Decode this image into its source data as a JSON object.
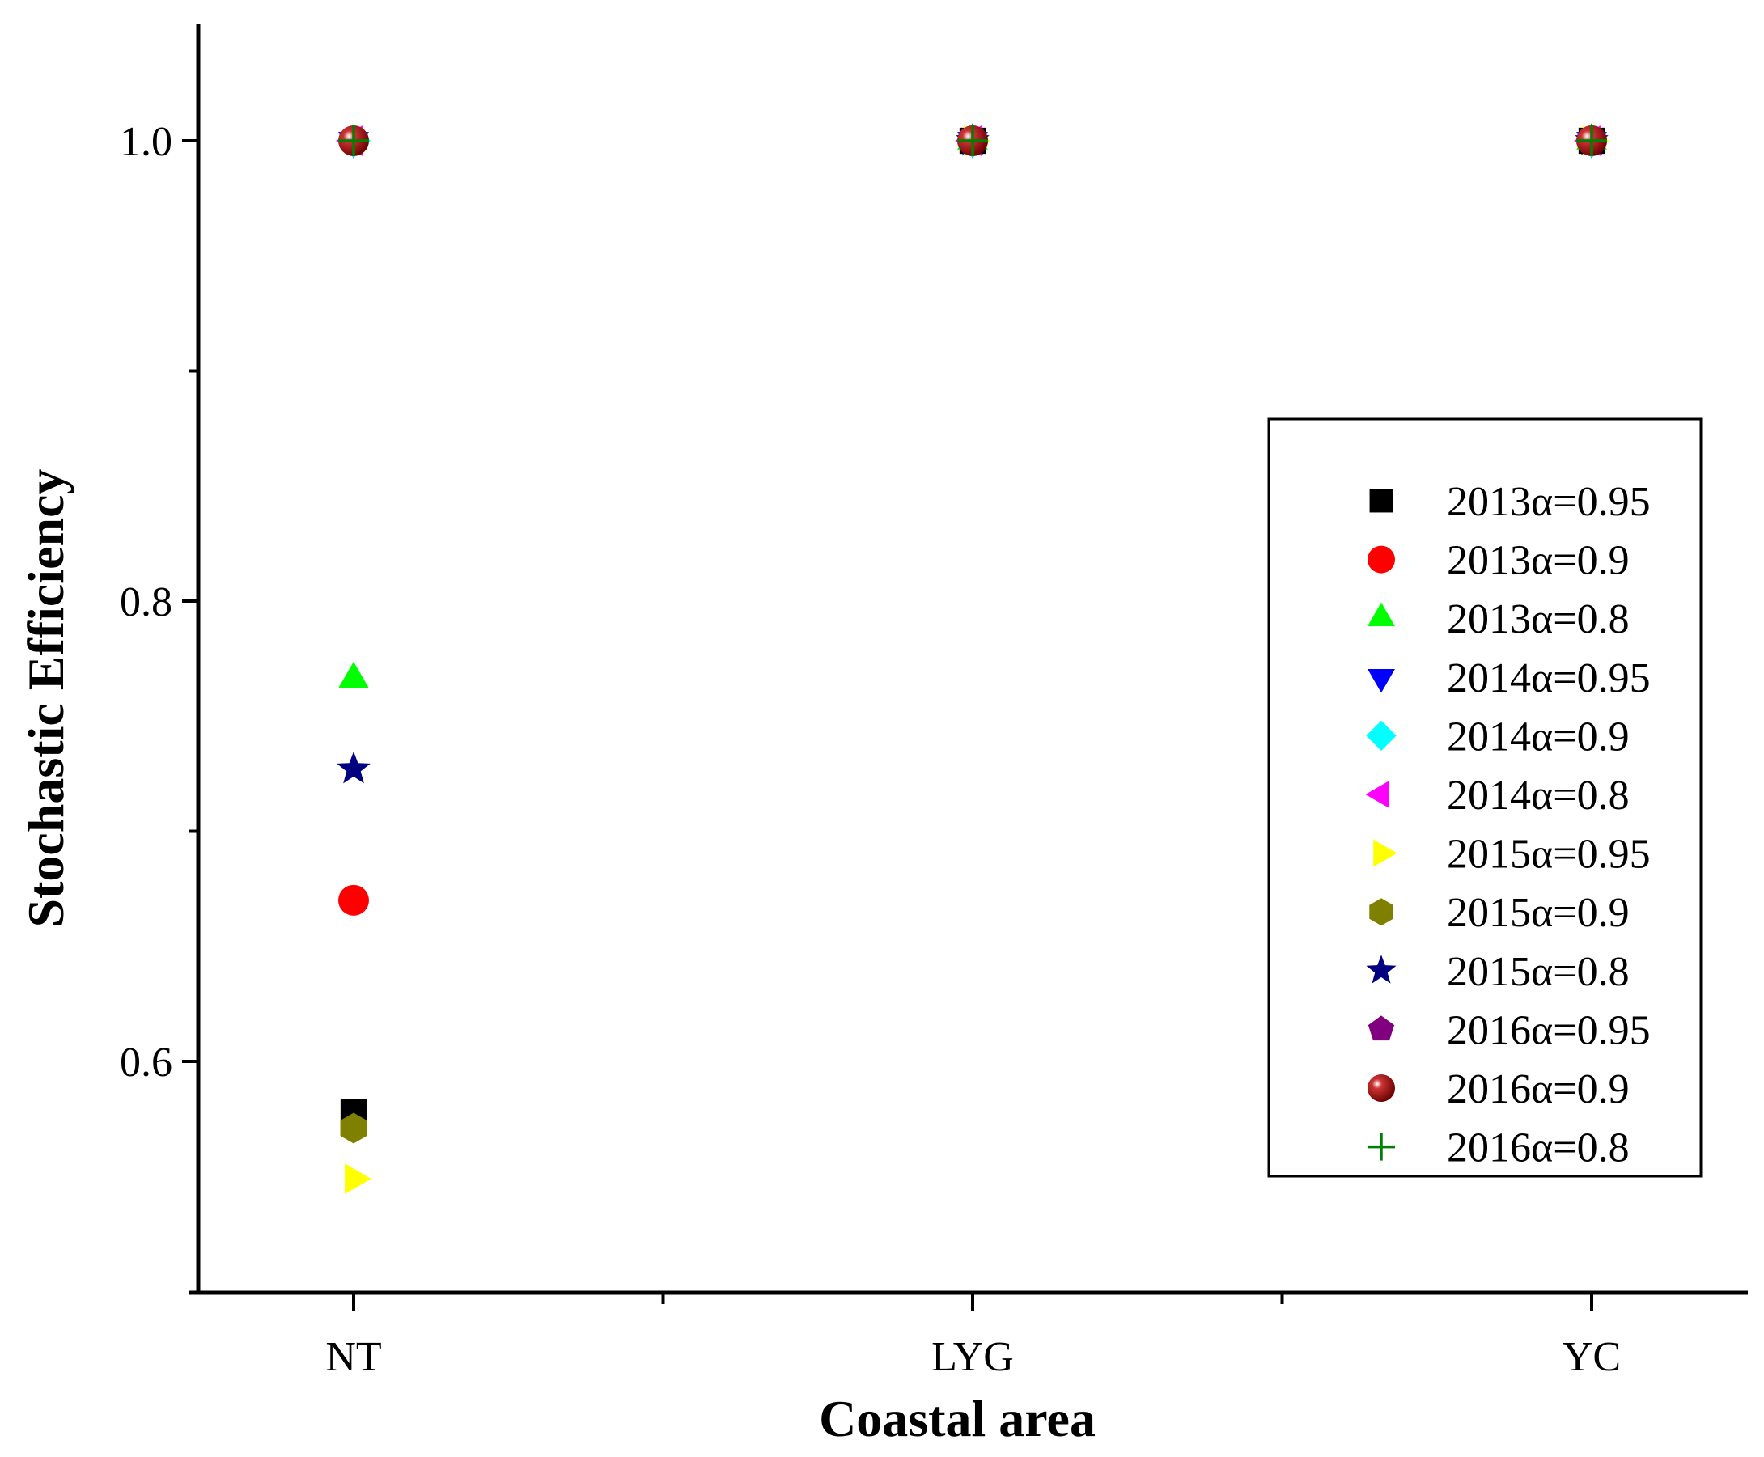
{
  "chart_data": {
    "type": "scatter",
    "title": "",
    "xlabel": "Coastal area",
    "ylabel": "Stochastic Efficiency",
    "categories": [
      "NT",
      "LYG",
      "YC"
    ],
    "ylim": [
      0.5,
      1.05
    ],
    "yticks": [
      0.6,
      0.8,
      1.0
    ],
    "ytick_labels": [
      "0.6",
      "0.8",
      "1.0"
    ],
    "legend_position": "right",
    "grid": false,
    "series": [
      {
        "name": "2013α=0.95",
        "marker": "square",
        "color": "#000000",
        "values": [
          0.578,
          1.0,
          1.0
        ]
      },
      {
        "name": "2013α=0.9",
        "marker": "circle",
        "color": "#ff0000",
        "values": [
          0.67,
          1.0,
          1.0
        ]
      },
      {
        "name": "2013α=0.8",
        "marker": "triangle-up",
        "color": "#00ff00",
        "values": [
          0.766,
          1.0,
          1.0
        ]
      },
      {
        "name": "2014α=0.95",
        "marker": "triangle-down",
        "color": "#0000ff",
        "values": [
          1.0,
          1.0,
          1.0
        ]
      },
      {
        "name": "2014α=0.9",
        "marker": "diamond",
        "color": "#00ffff",
        "values": [
          1.0,
          1.0,
          1.0
        ]
      },
      {
        "name": "2014α=0.8",
        "marker": "triangle-left",
        "color": "#ff00ff",
        "values": [
          1.0,
          1.0,
          1.0
        ]
      },
      {
        "name": "2015α=0.95",
        "marker": "triangle-right",
        "color": "#ffff00",
        "values": [
          0.549,
          1.0,
          1.0
        ]
      },
      {
        "name": "2015α=0.9",
        "marker": "hexagon",
        "color": "#808000",
        "values": [
          0.571,
          1.0,
          1.0
        ]
      },
      {
        "name": "2015α=0.8",
        "marker": "star",
        "color": "#000080",
        "values": [
          0.727,
          1.0,
          1.0
        ]
      },
      {
        "name": "2016α=0.95",
        "marker": "pentagon",
        "color": "#800080",
        "values": [
          1.0,
          1.0,
          1.0
        ]
      },
      {
        "name": "2016α=0.9",
        "marker": "sphere",
        "color": "#990000",
        "values": [
          1.0,
          1.0,
          1.0
        ]
      },
      {
        "name": "2016α=0.8",
        "marker": "plus",
        "color": "#008000",
        "values": [
          1.0,
          1.0,
          1.0
        ]
      }
    ]
  }
}
